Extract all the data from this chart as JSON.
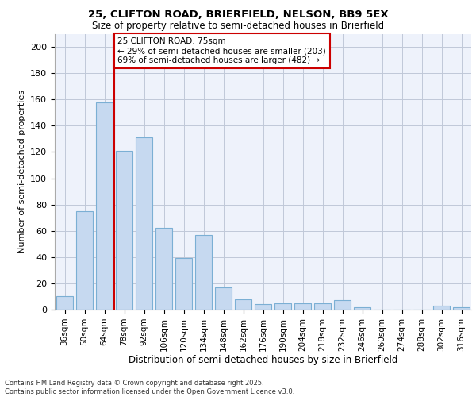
{
  "title1": "25, CLIFTON ROAD, BRIERFIELD, NELSON, BB9 5EX",
  "title2": "Size of property relative to semi-detached houses in Brierfield",
  "xlabel": "Distribution of semi-detached houses by size in Brierfield",
  "ylabel": "Number of semi-detached properties",
  "footer1": "Contains HM Land Registry data © Crown copyright and database right 2025.",
  "footer2": "Contains public sector information licensed under the Open Government Licence v3.0.",
  "categories": [
    "36sqm",
    "50sqm",
    "64sqm",
    "78sqm",
    "92sqm",
    "106sqm",
    "120sqm",
    "134sqm",
    "148sqm",
    "162sqm",
    "176sqm",
    "190sqm",
    "204sqm",
    "218sqm",
    "232sqm",
    "246sqm",
    "260sqm",
    "274sqm",
    "288sqm",
    "302sqm",
    "316sqm"
  ],
  "values": [
    10,
    75,
    158,
    121,
    131,
    62,
    39,
    57,
    17,
    8,
    4,
    5,
    5,
    5,
    7,
    2,
    0,
    0,
    0,
    3,
    2
  ],
  "bar_color": "#c6d9f0",
  "bar_edge_color": "#7bafd4",
  "grid_color": "#c0c8d8",
  "background_color": "#eef2fb",
  "vline_x_index": 3,
  "vline_color": "#cc0000",
  "annotation_text": "25 CLIFTON ROAD: 75sqm\n← 29% of semi-detached houses are smaller (203)\n69% of semi-detached houses are larger (482) →",
  "annotation_box_color": "#ffffff",
  "annotation_box_edge": "#cc0000",
  "ylim": [
    0,
    210
  ],
  "yticks": [
    0,
    20,
    40,
    60,
    80,
    100,
    120,
    140,
    160,
    180,
    200
  ]
}
